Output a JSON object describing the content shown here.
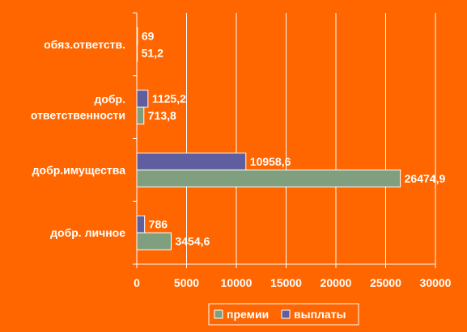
{
  "chart_data": {
    "type": "bar",
    "orientation": "horizontal",
    "categories": [
      "обяз.ответств.",
      "добр. ответственности",
      "добр.имущества",
      "добр. личное"
    ],
    "category_lines": [
      [
        "обяз.ответств."
      ],
      [
        "добр.",
        "ответственности"
      ],
      [
        "добр.имущества"
      ],
      [
        "добр. личное"
      ]
    ],
    "series": [
      {
        "name": "премии",
        "values": [
          51.2,
          713.8,
          26474.9,
          3454.6
        ],
        "labels": [
          "51,2",
          "713,8",
          "26474,9",
          "3454,6"
        ],
        "color": "#7F9F7F"
      },
      {
        "name": "выплаты",
        "values": [
          69,
          1125.2,
          10958.6,
          786
        ],
        "labels": [
          "69",
          "1125,2",
          "10958,6",
          "786"
        ],
        "color": "#5F5F9F"
      }
    ],
    "xlim": [
      0,
      30000
    ],
    "xticks": [
      "0",
      "5000",
      "10000",
      "15000",
      "20000",
      "25000",
      "30000"
    ],
    "grid": true,
    "legend": "bottom",
    "colors": {
      "background": "#FF6600",
      "axis": "#FFFFFF",
      "grid": "#FFFFFF",
      "text": "#FFFFFF"
    }
  }
}
